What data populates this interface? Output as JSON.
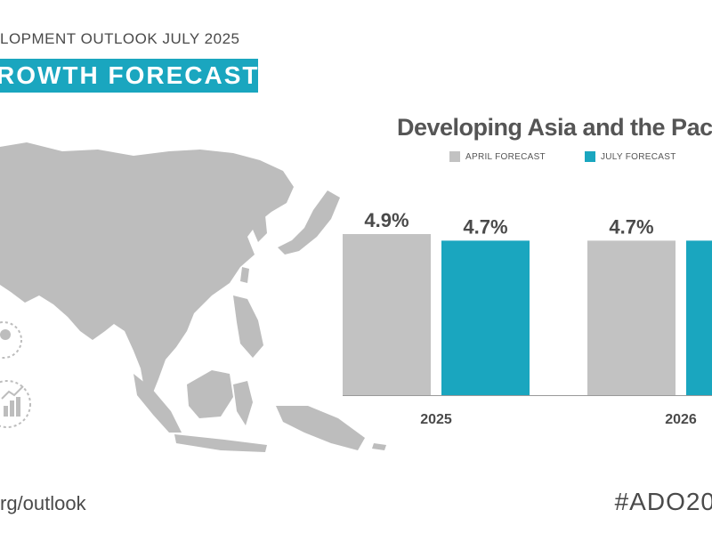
{
  "header": {
    "subtitle": "LOPMENT OUTLOOK JULY 2025",
    "banner": "ROWTH FORECAST"
  },
  "colors": {
    "april": "#c2c2c2",
    "july": "#1aa6bf",
    "map": "#bdbdbd",
    "text": "#4a4a4a"
  },
  "chart_data": {
    "type": "bar",
    "title": "Developing Asia and the Pacif",
    "categories": [
      "2025",
      "2026"
    ],
    "series": [
      {
        "name": "APRIL FORECAST",
        "values": [
          4.9,
          4.7
        ],
        "labels": [
          "4.9%",
          "4.7%"
        ]
      },
      {
        "name": "JULY FORECAST",
        "values": [
          4.7,
          4.7
        ],
        "labels": [
          "4.7%",
          ""
        ]
      }
    ],
    "xlabel": "",
    "ylabel": "",
    "ylim": [
      0,
      4.9
    ],
    "legend": "top"
  },
  "footer": {
    "url": "rg/outlook",
    "hashtag": "#ADO20"
  }
}
